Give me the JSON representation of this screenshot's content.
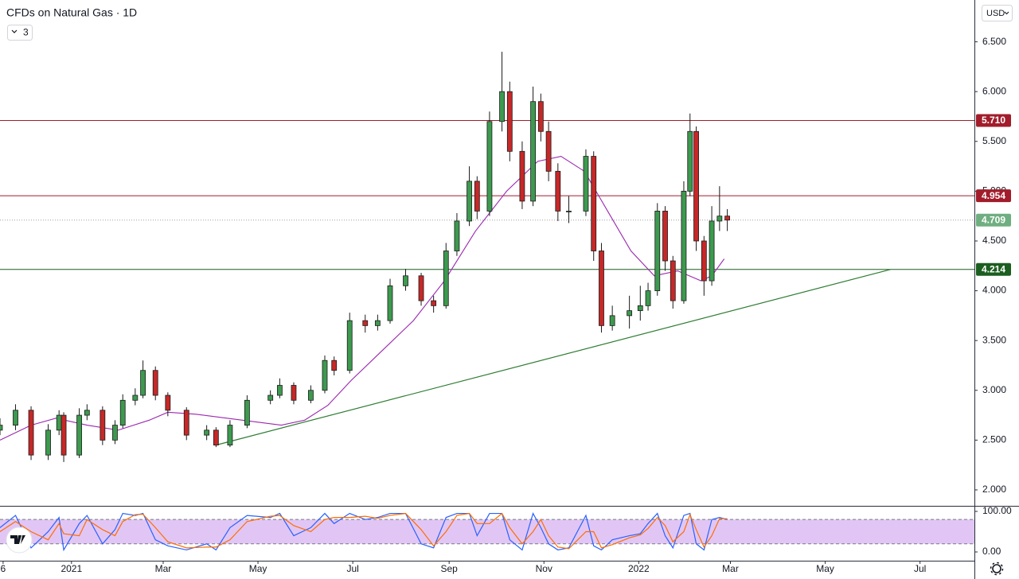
{
  "ui": {
    "indicators_badge": "3",
    "currency": "USD"
  },
  "chart_data": {
    "type": "candlestick",
    "title": "CFDs on Natural Gas · 1D",
    "up_color": "#3d9a4f",
    "down_color": "#c62828",
    "outline_color": "#1b1b1b",
    "x": [
      -46,
      -36,
      -26,
      -15,
      -8,
      -5,
      5,
      10,
      20,
      28,
      33,
      41,
      46,
      54,
      62,
      74,
      87,
      93,
      102,
      113,
      128,
      134,
      143,
      154,
      163,
      169,
      179,
      189,
      197,
      205,
      215,
      225,
      233,
      241,
      248,
      256,
      261,
      269,
      277,
      282,
      290,
      297,
      302,
      307,
      313,
      320,
      331,
      336,
      341,
      348,
      359,
      366,
      371,
      377,
      382,
      387,
      394,
      398,
      402,
      407,
      412,
      417,
      422
    ],
    "open": [
      2.6,
      2.65,
      2.8,
      2.35,
      2.6,
      2.75,
      2.35,
      2.75,
      2.8,
      2.5,
      2.65,
      2.9,
      2.95,
      3.2,
      2.95,
      2.8,
      2.55,
      2.6,
      2.45,
      2.65,
      2.9,
      2.95,
      3.05,
      2.9,
      3.0,
      3.3,
      3.2,
      3.7,
      3.65,
      3.7,
      4.05,
      4.15,
      3.9,
      3.85,
      4.4,
      4.7,
      5.1,
      4.8,
      5.7,
      6.0,
      5.4,
      4.9,
      5.9,
      5.6,
      5.2,
      4.8,
      4.8,
      5.35,
      4.4,
      3.65,
      3.75,
      3.8,
      3.85,
      4.0,
      4.8,
      4.3,
      3.9,
      5.0,
      5.6,
      4.5,
      4.1,
      4.7,
      4.75
    ],
    "high": [
      2.72,
      2.86,
      2.84,
      2.66,
      2.8,
      2.78,
      2.82,
      2.86,
      2.84,
      2.7,
      2.96,
      3.02,
      3.3,
      3.24,
      2.98,
      2.83,
      2.65,
      2.63,
      2.7,
      2.95,
      3.0,
      3.12,
      3.08,
      3.05,
      3.35,
      3.34,
      3.78,
      3.76,
      3.76,
      4.12,
      4.22,
      4.18,
      3.95,
      4.48,
      4.78,
      5.25,
      5.15,
      5.8,
      6.4,
      6.1,
      5.5,
      6.05,
      5.98,
      5.7,
      5.28,
      4.95,
      5.42,
      5.4,
      4.48,
      3.85,
      3.95,
      4.05,
      4.08,
      4.88,
      4.85,
      4.35,
      5.1,
      5.78,
      5.65,
      4.55,
      4.85,
      5.05,
      4.82
    ],
    "low": [
      2.55,
      2.6,
      2.3,
      2.3,
      2.55,
      2.28,
      2.32,
      2.7,
      2.45,
      2.46,
      2.62,
      2.85,
      2.92,
      2.9,
      2.74,
      2.5,
      2.5,
      2.43,
      2.43,
      2.62,
      2.86,
      2.92,
      2.86,
      2.87,
      2.97,
      3.15,
      3.17,
      3.58,
      3.6,
      3.67,
      4.0,
      3.85,
      3.78,
      3.82,
      4.35,
      4.65,
      4.72,
      4.75,
      5.6,
      5.3,
      4.82,
      4.85,
      5.5,
      5.1,
      4.7,
      4.68,
      4.75,
      4.3,
      3.58,
      3.6,
      3.62,
      3.7,
      3.8,
      3.95,
      4.2,
      3.82,
      3.87,
      4.95,
      4.4,
      3.95,
      4.05,
      4.6,
      4.6
    ],
    "close": [
      2.65,
      2.8,
      2.35,
      2.6,
      2.75,
      2.35,
      2.75,
      2.8,
      2.5,
      2.65,
      2.9,
      2.95,
      3.2,
      2.95,
      2.8,
      2.55,
      2.6,
      2.45,
      2.65,
      2.9,
      2.95,
      3.05,
      2.9,
      3.0,
      3.3,
      3.2,
      3.7,
      3.65,
      3.7,
      4.05,
      4.15,
      3.9,
      3.85,
      4.4,
      4.7,
      5.1,
      4.8,
      5.7,
      6.0,
      5.4,
      4.9,
      5.9,
      5.6,
      5.2,
      4.8,
      4.8,
      5.35,
      4.4,
      3.65,
      3.75,
      3.8,
      3.85,
      4.0,
      4.8,
      4.3,
      3.9,
      5.0,
      5.6,
      4.5,
      4.1,
      4.7,
      4.75,
      4.71
    ],
    "xlim": [
      -46,
      581
    ],
    "xticks": [
      {
        "value": -44,
        "label": "6"
      },
      {
        "value": 0,
        "label": "2021"
      },
      {
        "value": 59,
        "label": "Mar"
      },
      {
        "value": 120,
        "label": "May"
      },
      {
        "value": 181,
        "label": "Jul"
      },
      {
        "value": 243,
        "label": "Sep"
      },
      {
        "value": 304,
        "label": "Nov"
      },
      {
        "value": 365,
        "label": "2022"
      },
      {
        "value": 424,
        "label": "Mar"
      },
      {
        "value": 485,
        "label": "May"
      },
      {
        "value": 546,
        "label": "Jul"
      }
    ],
    "ylim": [
      1.84,
      6.92
    ],
    "yticks": [
      {
        "value": 2,
        "label": "2.000"
      },
      {
        "value": 2.5,
        "label": "2.500"
      },
      {
        "value": 3,
        "label": "3.000"
      },
      {
        "value": 3.5,
        "label": "3.500"
      },
      {
        "value": 4,
        "label": "4.000"
      },
      {
        "value": 4.5,
        "label": "4.500"
      },
      {
        "value": 5,
        "label": "5.000"
      },
      {
        "value": 5.5,
        "label": "5.500"
      },
      {
        "value": 6,
        "label": "6.000"
      },
      {
        "value": 6.5,
        "label": "6.500"
      }
    ],
    "moving_average": {
      "color": "#9c27b0",
      "x": [
        -46,
        -26,
        -10,
        10,
        30,
        50,
        62,
        80,
        100,
        120,
        135,
        150,
        165,
        180,
        200,
        220,
        240,
        260,
        280,
        300,
        315,
        330,
        345,
        360,
        375,
        390,
        405,
        412,
        420
      ],
      "values": [
        2.5,
        2.65,
        2.72,
        2.65,
        2.6,
        2.7,
        2.78,
        2.76,
        2.72,
        2.68,
        2.65,
        2.7,
        2.85,
        3.1,
        3.4,
        3.7,
        4.1,
        4.6,
        5.0,
        5.3,
        5.35,
        5.2,
        4.8,
        4.4,
        4.15,
        4.2,
        4.1,
        4.15,
        4.32
      ]
    },
    "levels": [
      {
        "value": 5.71,
        "label": "5.710",
        "color": "#a11d2b"
      },
      {
        "value": 4.954,
        "label": "4.954",
        "color": "#a11d2b"
      },
      {
        "value": 4.214,
        "label": "4.214",
        "color": "#1b5e20"
      }
    ],
    "current_price": {
      "value": 4.709,
      "label": "4.709",
      "color": "#6fae80"
    },
    "trendline": {
      "color": "#2e7d32",
      "x": [
        93,
        527
      ],
      "values": [
        2.45,
        4.214
      ]
    },
    "oscillator": {
      "ylim": [
        -21.6,
        113.7
      ],
      "yticks": [
        {
          "value": 0,
          "label": "0.00"
        },
        {
          "value": 100,
          "label": "100.00"
        }
      ],
      "band": [
        20,
        80
      ],
      "band_color": "#e1c6f5",
      "series": [
        {
          "color": "#2962ff",
          "values": [
            60,
            90,
            10,
            50,
            85,
            5,
            70,
            90,
            20,
            55,
            95,
            90,
            95,
            30,
            15,
            5,
            20,
            5,
            60,
            90,
            85,
            95,
            40,
            60,
            95,
            70,
            95,
            80,
            85,
            95,
            95,
            20,
            10,
            85,
            95,
            95,
            40,
            95,
            95,
            30,
            5,
            95,
            60,
            20,
            5,
            10,
            90,
            15,
            5,
            30,
            40,
            45,
            70,
            95,
            40,
            10,
            90,
            95,
            20,
            5,
            80,
            85,
            80
          ]
        },
        {
          "color": "#ff6d00",
          "values": [
            50,
            75,
            50,
            30,
            70,
            45,
            40,
            80,
            55,
            40,
            75,
            92,
            93,
            60,
            25,
            10,
            12,
            12,
            30,
            75,
            88,
            90,
            65,
            50,
            80,
            85,
            85,
            88,
            83,
            90,
            95,
            55,
            15,
            50,
            90,
            95,
            70,
            70,
            95,
            60,
            20,
            50,
            80,
            40,
            12,
            8,
            50,
            50,
            10,
            18,
            35,
            42,
            58,
            85,
            65,
            25,
            50,
            92,
            55,
            12,
            40,
            82,
            82
          ]
        }
      ]
    }
  }
}
